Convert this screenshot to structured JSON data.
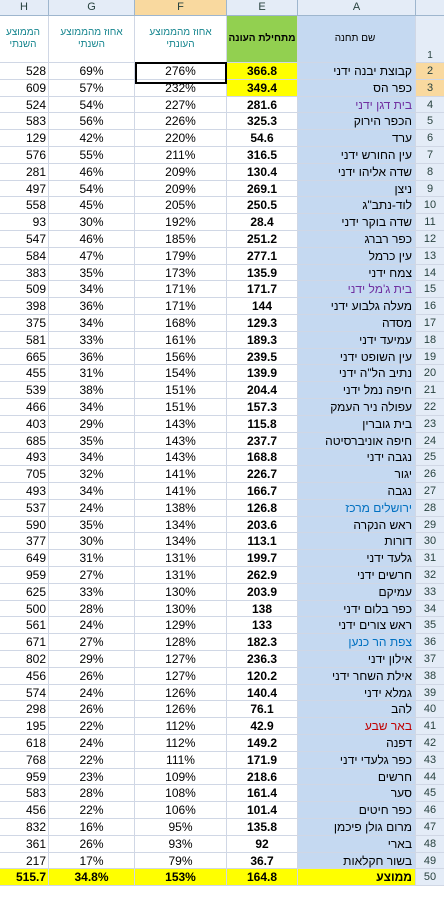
{
  "columns": {
    "h": "H",
    "g": "G",
    "f": "F",
    "e": "E",
    "a": "A"
  },
  "headers": {
    "h": "הממוצע השנתי",
    "g": "אחוז מהממוצע השנתי",
    "f": "אחוז מהממוצע העונתי",
    "e": "מתחילת העונה",
    "a": "שם תחנה",
    "row_num": "1"
  },
  "colors": {
    "header_green": "#92d050",
    "name_fill": "#c5d9f1",
    "highlight_yellow": "#ffff00",
    "text_purple": "#7030a0",
    "text_blue": "#0070c0",
    "text_red": "#c00000"
  },
  "rows": [
    {
      "n": "2",
      "h": "528",
      "g": "69%",
      "f": "276%",
      "e": "366.8",
      "a": "קבוצת יבנה ידני",
      "hl": true
    },
    {
      "n": "3",
      "h": "609",
      "g": "57%",
      "f": "232%",
      "e": "349.4",
      "a": "כפר הס",
      "hl": true
    },
    {
      "n": "4",
      "h": "524",
      "g": "54%",
      "f": "227%",
      "e": "281.6",
      "a": "בית דגן ידני",
      "color": "purple"
    },
    {
      "n": "5",
      "h": "583",
      "g": "56%",
      "f": "226%",
      "e": "325.3",
      "a": "הכפר הירוק"
    },
    {
      "n": "6",
      "h": "129",
      "g": "42%",
      "f": "220%",
      "e": "54.6",
      "a": "ערד"
    },
    {
      "n": "7",
      "h": "576",
      "g": "55%",
      "f": "211%",
      "e": "316.5",
      "a": "עין החורש ידני"
    },
    {
      "n": "8",
      "h": "281",
      "g": "46%",
      "f": "209%",
      "e": "130.4",
      "a": "שדה אליהו ידני"
    },
    {
      "n": "9",
      "h": "497",
      "g": "54%",
      "f": "209%",
      "e": "269.1",
      "a": "ניצן"
    },
    {
      "n": "10",
      "h": "558",
      "g": "45%",
      "f": "205%",
      "e": "250.5",
      "a": "לוד-נתב\"ג"
    },
    {
      "n": "11",
      "h": "93",
      "g": "30%",
      "f": "192%",
      "e": "28.4",
      "a": "שדה בוקר ידני"
    },
    {
      "n": "12",
      "h": "547",
      "g": "46%",
      "f": "185%",
      "e": "251.2",
      "a": "כפר רברג"
    },
    {
      "n": "13",
      "h": "584",
      "g": "47%",
      "f": "179%",
      "e": "277.1",
      "a": "עין כרמל"
    },
    {
      "n": "14",
      "h": "383",
      "g": "35%",
      "f": "173%",
      "e": "135.9",
      "a": "צמח ידני"
    },
    {
      "n": "15",
      "h": "509",
      "g": "34%",
      "f": "171%",
      "e": "171.7",
      "a": "בית ג'מל ידני",
      "color": "purple"
    },
    {
      "n": "16",
      "h": "398",
      "g": "36%",
      "f": "171%",
      "e": "144",
      "a": "מעלה גלבוע ידני"
    },
    {
      "n": "17",
      "h": "375",
      "g": "34%",
      "f": "168%",
      "e": "129.3",
      "a": "מסדה"
    },
    {
      "n": "18",
      "h": "581",
      "g": "33%",
      "f": "161%",
      "e": "189.3",
      "a": "עמיעד ידני"
    },
    {
      "n": "19",
      "h": "665",
      "g": "36%",
      "f": "156%",
      "e": "239.5",
      "a": "עין השופט ידני"
    },
    {
      "n": "20",
      "h": "455",
      "g": "31%",
      "f": "154%",
      "e": "139.9",
      "a": "נתיב הל\"ה ידני"
    },
    {
      "n": "21",
      "h": "539",
      "g": "38%",
      "f": "151%",
      "e": "204.4",
      "a": "חיפה נמל ידני"
    },
    {
      "n": "22",
      "h": "466",
      "g": "34%",
      "f": "151%",
      "e": "157.3",
      "a": "עפולה ניר העמק"
    },
    {
      "n": "23",
      "h": "403",
      "g": "29%",
      "f": "143%",
      "e": "115.8",
      "a": "בית גוברין"
    },
    {
      "n": "24",
      "h": "685",
      "g": "35%",
      "f": "143%",
      "e": "237.7",
      "a": "חיפה אוניברסיטה"
    },
    {
      "n": "25",
      "h": "493",
      "g": "34%",
      "f": "143%",
      "e": "168.8",
      "a": "נגבה ידני"
    },
    {
      "n": "26",
      "h": "705",
      "g": "32%",
      "f": "141%",
      "e": "226.7",
      "a": "יגור"
    },
    {
      "n": "27",
      "h": "493",
      "g": "34%",
      "f": "141%",
      "e": "166.7",
      "a": "נגבה"
    },
    {
      "n": "28",
      "h": "537",
      "g": "24%",
      "f": "138%",
      "e": "126.8",
      "a": "ירושלים מרכז",
      "color": "blue"
    },
    {
      "n": "29",
      "h": "590",
      "g": "35%",
      "f": "134%",
      "e": "203.6",
      "a": "ראש הנקרה"
    },
    {
      "n": "30",
      "h": "377",
      "g": "30%",
      "f": "134%",
      "e": "113.1",
      "a": "דורות"
    },
    {
      "n": "31",
      "h": "649",
      "g": "31%",
      "f": "131%",
      "e": "199.7",
      "a": "גלעד ידני"
    },
    {
      "n": "32",
      "h": "959",
      "g": "27%",
      "f": "131%",
      "e": "262.9",
      "a": "חרשים ידני"
    },
    {
      "n": "33",
      "h": "625",
      "g": "33%",
      "f": "130%",
      "e": "203.9",
      "a": "עמיקם"
    },
    {
      "n": "34",
      "h": "500",
      "g": "28%",
      "f": "130%",
      "e": "138",
      "a": "כפר בלום ידני"
    },
    {
      "n": "35",
      "h": "561",
      "g": "24%",
      "f": "129%",
      "e": "133",
      "a": "ראש צורים ידני"
    },
    {
      "n": "36",
      "h": "671",
      "g": "27%",
      "f": "128%",
      "e": "182.3",
      "a": "צפת הר כנען",
      "color": "blue"
    },
    {
      "n": "37",
      "h": "802",
      "g": "29%",
      "f": "127%",
      "e": "236.3",
      "a": "אילון ידני"
    },
    {
      "n": "38",
      "h": "456",
      "g": "26%",
      "f": "127%",
      "e": "120.2",
      "a": "אילת השחר ידני"
    },
    {
      "n": "39",
      "h": "574",
      "g": "24%",
      "f": "126%",
      "e": "140.4",
      "a": "גמלא ידני"
    },
    {
      "n": "40",
      "h": "298",
      "g": "26%",
      "f": "126%",
      "e": "76.1",
      "a": "להב"
    },
    {
      "n": "41",
      "h": "195",
      "g": "22%",
      "f": "112%",
      "e": "42.9",
      "a": "באר שבע",
      "color": "red"
    },
    {
      "n": "42",
      "h": "618",
      "g": "24%",
      "f": "112%",
      "e": "149.2",
      "a": "דפנה"
    },
    {
      "n": "43",
      "h": "768",
      "g": "22%",
      "f": "111%",
      "e": "171.9",
      "a": "כפר גלעדי ידני"
    },
    {
      "n": "44",
      "h": "959",
      "g": "23%",
      "f": "109%",
      "e": "218.6",
      "a": "חרשים"
    },
    {
      "n": "45",
      "h": "583",
      "g": "28%",
      "f": "108%",
      "e": "161.4",
      "a": "סער"
    },
    {
      "n": "46",
      "h": "456",
      "g": "22%",
      "f": "106%",
      "e": "101.4",
      "a": "כפר חיטים"
    },
    {
      "n": "47",
      "h": "832",
      "g": "16%",
      "f": "95%",
      "e": "135.8",
      "a": "מרום גולן פיכמן"
    },
    {
      "n": "48",
      "h": "361",
      "g": "26%",
      "f": "93%",
      "e": "92",
      "a": "בארי"
    },
    {
      "n": "49",
      "h": "217",
      "g": "17%",
      "f": "79%",
      "e": "36.7",
      "a": "בשור חקלאות"
    }
  ],
  "total": {
    "n": "50",
    "h": "515.7",
    "g": "34.8%",
    "f": "153%",
    "e": "164.8",
    "a": "ממוצע"
  }
}
